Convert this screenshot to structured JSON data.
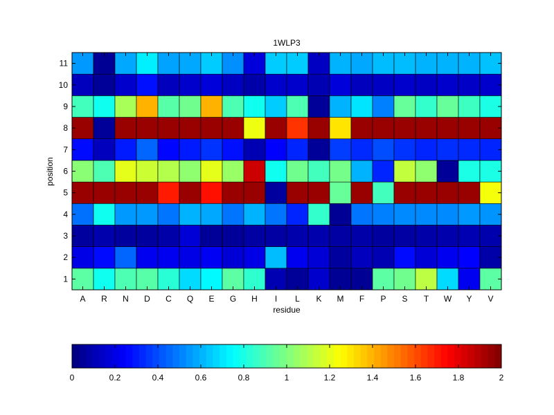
{
  "chart_data": [
    {
      "type": "heatmap",
      "title": "1WLP3",
      "xlabel": "residue",
      "ylabel": "position",
      "x_categories": [
        "A",
        "R",
        "N",
        "D",
        "C",
        "Q",
        "E",
        "G",
        "H",
        "I",
        "L",
        "K",
        "M",
        "F",
        "P",
        "S",
        "T",
        "W",
        "Y",
        "V"
      ],
      "y_categories": [
        "1",
        "2",
        "3",
        "4",
        "5",
        "6",
        "7",
        "8",
        "9",
        "10",
        "11"
      ],
      "colormap": "jet",
      "clim": [
        0,
        2
      ],
      "grid": false,
      "values": [
        [
          0.93,
          0.78,
          0.9,
          0.92,
          0.83,
          0.68,
          0.74,
          0.93,
          0.84,
          0.1,
          0.05,
          0.15,
          0.04,
          0.04,
          0.93,
          0.97,
          1.12,
          0.68,
          0.22,
          0.93
        ],
        [
          0.2,
          0.27,
          0.45,
          0.22,
          0.22,
          0.2,
          0.23,
          0.17,
          0.2,
          0.62,
          0.22,
          0.17,
          0.06,
          0.12,
          0.1,
          0.27,
          0.17,
          0.22,
          0.25,
          0.08
        ],
        [
          0.06,
          0.09,
          0.06,
          0.06,
          0.08,
          0.17,
          0.05,
          0.05,
          0.07,
          0.07,
          0.09,
          0.09,
          0.07,
          0.08,
          0.06,
          0.07,
          0.08,
          0.09,
          0.1,
          0.09
        ],
        [
          0.47,
          0.78,
          0.55,
          0.55,
          0.48,
          0.6,
          0.58,
          0.48,
          0.6,
          0.48,
          0.32,
          0.85,
          0.04,
          0.48,
          0.5,
          0.52,
          0.52,
          0.52,
          0.55,
          0.54
        ],
        [
          1.95,
          1.95,
          1.95,
          1.95,
          1.7,
          1.95,
          1.72,
          1.95,
          1.95,
          0.06,
          1.95,
          1.95,
          0.95,
          1.95,
          0.88,
          1.95,
          1.95,
          1.95,
          1.95,
          1.23
        ],
        [
          1.02,
          0.9,
          1.2,
          1.15,
          1.1,
          1.03,
          1.2,
          1.05,
          1.85,
          0.78,
          0.97,
          0.88,
          0.98,
          0.6,
          0.32,
          1.13,
          1.03,
          0.05,
          0.8,
          0.8
        ],
        [
          0.27,
          0.12,
          0.3,
          0.45,
          0.26,
          0.3,
          0.35,
          0.28,
          0.1,
          0.25,
          0.32,
          0.05,
          0.37,
          0.33,
          0.4,
          0.35,
          0.32,
          0.34,
          0.33,
          0.32
        ],
        [
          1.95,
          0.05,
          1.95,
          1.95,
          1.95,
          1.95,
          1.95,
          1.95,
          1.22,
          1.95,
          1.65,
          1.95,
          1.3,
          1.95,
          1.95,
          1.95,
          1.95,
          1.95,
          1.95,
          1.95
        ],
        [
          0.88,
          0.78,
          1.08,
          1.4,
          0.92,
          0.97,
          1.4,
          0.9,
          0.78,
          0.65,
          0.9,
          0.05,
          0.6,
          0.7,
          0.5,
          0.95,
          0.85,
          0.95,
          0.87,
          0.8
        ],
        [
          0.12,
          0.05,
          0.15,
          0.28,
          0.12,
          0.15,
          0.18,
          0.13,
          0.08,
          0.15,
          0.15,
          0.1,
          0.18,
          0.12,
          0.13,
          0.15,
          0.13,
          0.15,
          0.14,
          0.15
        ],
        [
          0.55,
          0.04,
          0.58,
          0.72,
          0.57,
          0.58,
          0.65,
          0.53,
          0.18,
          0.65,
          0.65,
          0.13,
          0.6,
          0.58,
          0.62,
          0.62,
          0.6,
          0.6,
          0.6,
          0.63
        ]
      ]
    },
    {
      "type": "colorbar",
      "clim": [
        0,
        2
      ],
      "ticks": [
        "0",
        "0.2",
        "0.4",
        "0.6",
        "0.8",
        "1",
        "1.2",
        "1.4",
        "1.6",
        "1.8",
        "2"
      ],
      "tick_values": [
        0,
        0.2,
        0.4,
        0.6,
        0.8,
        1.0,
        1.2,
        1.4,
        1.6,
        1.8,
        2.0
      ]
    }
  ]
}
